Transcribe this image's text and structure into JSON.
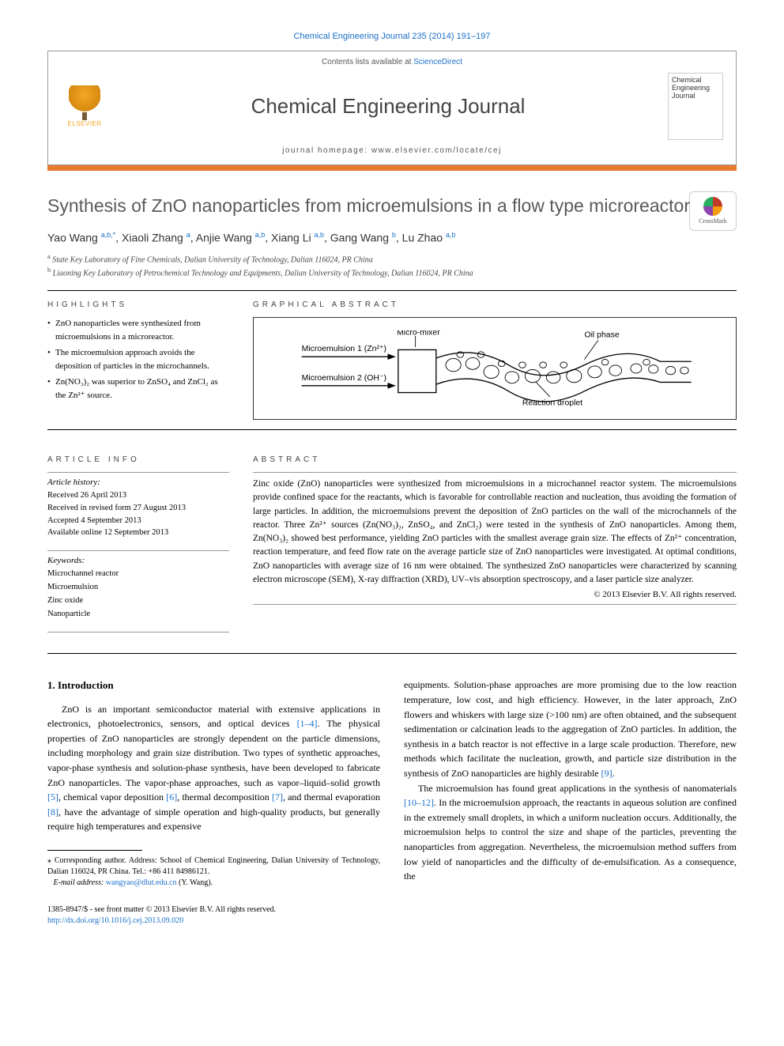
{
  "citation": "Chemical Engineering Journal 235 (2014) 191–197",
  "contents_prefix": "Contents lists available at ",
  "contents_link": "ScienceDirect",
  "journal_name": "Chemical Engineering Journal",
  "cover_text": "Chemical Engineering Journal",
  "homepage_prefix": "journal homepage: ",
  "homepage_url": "www.elsevier.com/locate/cej",
  "elsevier_label": "ELSEVIER",
  "article_title": "Synthesis of ZnO nanoparticles from microemulsions in a flow type microreactor",
  "crossmark_label": "CrossMark",
  "authors_html": "Yao Wang <sup>a,b,*</sup>, Xiaoli Zhang <sup>a</sup>, Anjie Wang <sup>a,b</sup>, Xiang Li <sup>a,b</sup>, Gang Wang <sup>b</sup>, Lu Zhao <sup>a,b</sup>",
  "affiliations": [
    {
      "sup": "a",
      "text": "State Key Laboratory of Fine Chemicals, Dalian University of Technology, Dalian 116024, PR China"
    },
    {
      "sup": "b",
      "text": "Liaoning Key Laboratory of Petrochemical Technology and Equipments, Dalian University of Technology, Dalian 116024, PR China"
    }
  ],
  "labels": {
    "highlights": "HIGHLIGHTS",
    "graphical_abstract": "GRAPHICAL ABSTRACT",
    "article_info": "ARTICLE INFO",
    "abstract": "ABSTRACT"
  },
  "highlights": [
    "ZnO nanoparticles were synthesized from microemulsions in a microreactor.",
    "The microemulsion approach avoids the deposition of particles in the microchannels.",
    "Zn(NO₃)₂ was superior to ZnSO₄ and ZnCl₂ as the Zn²⁺ source."
  ],
  "graphical_abstract": {
    "me1_label": "Microemulsion 1 (Zn²⁺)",
    "me2_label": "Microemulsion 2 (OH⁻)",
    "mixer_label": "Micro-mixer",
    "oil_label": "Oil phase",
    "droplet_label": "Reaction droplet",
    "box_stroke": "#333333",
    "line_color": "#000000",
    "bg": "#ffffff"
  },
  "article_history": {
    "heading": "Article history:",
    "items": [
      "Received 26 April 2013",
      "Received in revised form 27 August 2013",
      "Accepted 4 September 2013",
      "Available online 12 September 2013"
    ]
  },
  "keywords": {
    "heading": "Keywords:",
    "items": [
      "Microchannel reactor",
      "Microemulsion",
      "Zinc oxide",
      "Nanoparticle"
    ]
  },
  "abstract_text": "Zinc oxide (ZnO) nanoparticles were synthesized from microemulsions in a microchannel reactor system. The microemulsions provide confined space for the reactants, which is favorable for controllable reaction and nucleation, thus avoiding the formation of large particles. In addition, the microemulsions prevent the deposition of ZnO particles on the wall of the microchannels of the reactor. Three Zn²⁺ sources (Zn(NO₃)₂, ZnSO₄, and ZnCl₂) were tested in the synthesis of ZnO nanoparticles. Among them, Zn(NO₃)₂ showed best performance, yielding ZnO particles with the smallest average grain size. The effects of Zn²⁺ concentration, reaction temperature, and feed flow rate on the average particle size of ZnO nanoparticles were investigated. At optimal conditions, ZnO nanoparticles with average size of 16 nm were obtained. The synthesized ZnO nanoparticles were characterized by scanning electron microscope (SEM), X-ray diffraction (XRD), UV–vis absorption spectroscopy, and a laser particle size analyzer.",
  "copyright": "© 2013 Elsevier B.V. All rights reserved.",
  "intro_heading": "1. Introduction",
  "intro_col1": "ZnO is an important semiconductor material with extensive applications in electronics, photoelectronics, sensors, and optical devices [1–4]. The physical properties of ZnO nanoparticles are strongly dependent on the particle dimensions, including morphology and grain size distribution. Two types of synthetic approaches, vapor-phase synthesis and solution-phase synthesis, have been developed to fabricate ZnO nanoparticles. The vapor-phase approaches, such as vapor–liquid–solid growth [5], chemical vapor deposition [6], thermal decomposition [7], and thermal evaporation [8], have the advantage of simple operation and high-quality products, but generally require high temperatures and expensive",
  "intro_col2_p1": "equipments. Solution-phase approaches are more promising due to the low reaction temperature, low cost, and high efficiency. However, in the later approach, ZnO flowers and whiskers with large size (>100 nm) are often obtained, and the subsequent sedimentation or calcination leads to the aggregation of ZnO particles. In addition, the synthesis in a batch reactor is not effective in a large scale production. Therefore, new methods which facilitate the nucleation, growth, and particle size distribution in the synthesis of ZnO nanoparticles are highly desirable [9].",
  "intro_col2_p2": "The microemulsion has found great applications in the synthesis of nanomaterials [10–12]. In the microemulsion approach, the reactants in aqueous solution are confined in the extremely small droplets, in which a uniform nucleation occurs. Additionally, the microemulsion helps to control the size and shape of the particles, preventing the nanoparticles from aggregation. Nevertheless, the microemulsion method suffers from low yield of nanoparticles and the difficulty of de-emulsification. As a consequence, the",
  "footnote": {
    "star": "⁎",
    "text": "Corresponding author. Address: School of Chemical Engineering, Dalian University of Technology, Dalian 116024, PR China. Tel.: +86 411 84986121.",
    "email_label": "E-mail address:",
    "email": "wangyao@dlut.edu.cn",
    "email_suffix": "(Y. Wang)."
  },
  "footer": {
    "line1": "1385-8947/$ - see front matter © 2013 Elsevier B.V. All rights reserved.",
    "doi": "http://dx.doi.org/10.1016/j.cej.2013.09.020"
  },
  "refs": {
    "r1_4": "[1–4]",
    "r5": "[5]",
    "r6": "[6]",
    "r7": "[7]",
    "r8": "[8]",
    "r9": "[9]",
    "r10_12": "[10–12]"
  },
  "colors": {
    "link": "#1a6fc9",
    "orange_bar": "#e87a2e",
    "elsevier_orange": "#f5a623",
    "text": "#000000",
    "heading_gray": "#5a5a5a"
  }
}
